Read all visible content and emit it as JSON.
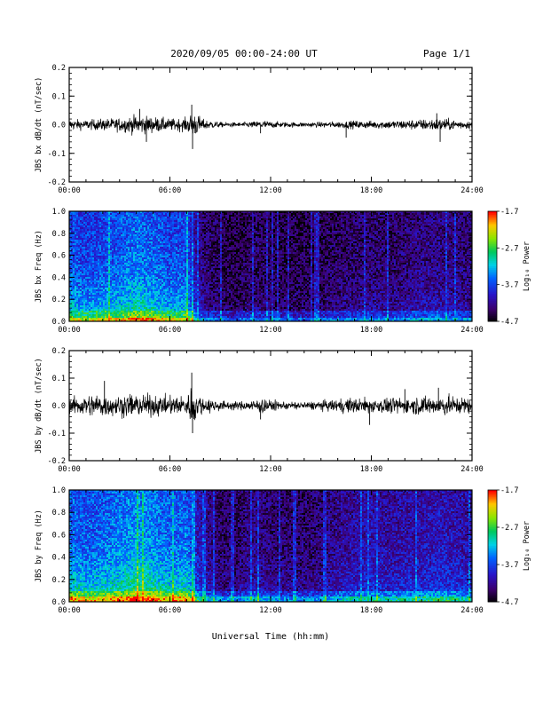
{
  "header": {
    "title": "2020/09/05  00:00-24:00 UT",
    "page": "Page 1/1"
  },
  "xlabel": "Universal Time (hh:mm)",
  "colors": {
    "trace": "#000000",
    "background": "#ffffff"
  },
  "chart_data": [
    {
      "type": "line",
      "name": "bx-dbdt",
      "ylabel": "JBS bx dB/dt (nT/sec)",
      "xlim": [
        0,
        24
      ],
      "ylim": [
        -0.2,
        0.2
      ],
      "x_ticks": [
        "00:00",
        "06:00",
        "12:00",
        "18:00",
        "24:00"
      ],
      "y_ticks": [
        "0.2",
        "0.1",
        "0.0",
        "-0.1",
        "-0.2"
      ],
      "envelope": {
        "hours": [
          0,
          1,
          2,
          3,
          4,
          5,
          6,
          7,
          7.4,
          8,
          9,
          10,
          11,
          11.5,
          12,
          13,
          14,
          15,
          16,
          17,
          18,
          19,
          20,
          21,
          22,
          23,
          24
        ],
        "amplitude": [
          0.02,
          0.018,
          0.022,
          0.025,
          0.035,
          0.03,
          0.022,
          0.025,
          0.05,
          0.02,
          0.01,
          0.008,
          0.012,
          0.018,
          0.012,
          0.01,
          0.009,
          0.01,
          0.012,
          0.015,
          0.014,
          0.016,
          0.018,
          0.02,
          0.025,
          0.018,
          0.015
        ]
      },
      "spikes": [
        [
          4.2,
          0.055
        ],
        [
          4.6,
          -0.06
        ],
        [
          7.3,
          0.07
        ],
        [
          7.35,
          -0.085
        ],
        [
          11.4,
          -0.03
        ],
        [
          16.5,
          -0.045
        ],
        [
          21.9,
          0.04
        ],
        [
          22.1,
          -0.06
        ]
      ]
    },
    {
      "type": "heatmap",
      "name": "bx-spectrogram",
      "ylabel": "JBS bx Freq (Hz)",
      "xlim": [
        0,
        24
      ],
      "ylim": [
        0,
        1
      ],
      "x_ticks": [
        "00:00",
        "06:00",
        "12:00",
        "18:00",
        "24:00"
      ],
      "y_ticks": [
        "1.0",
        "0.8",
        "0.6",
        "0.4",
        "0.2",
        "0.0"
      ],
      "colorbar": {
        "label": "Log₁₀ Power",
        "range": [
          -4.7,
          -1.7
        ],
        "ticks": [
          "-1.7",
          "-2.7",
          "-3.7",
          "-4.7"
        ]
      },
      "activity": {
        "hours": [
          0,
          1,
          2,
          3,
          4,
          5,
          6,
          7,
          7.5,
          8,
          9,
          10,
          11,
          12,
          13,
          14,
          15,
          16,
          17,
          18,
          19,
          20,
          21,
          22,
          23,
          24
        ],
        "level": [
          0.62,
          0.55,
          0.6,
          0.62,
          0.7,
          0.65,
          0.58,
          0.6,
          0.35,
          0.22,
          0.15,
          0.12,
          0.18,
          0.15,
          0.14,
          0.13,
          0.15,
          0.18,
          0.2,
          0.22,
          0.2,
          0.22,
          0.25,
          0.26,
          0.24,
          0.22
        ]
      },
      "bright_lines": [
        7.35
      ]
    },
    {
      "type": "line",
      "name": "by-dbdt",
      "ylabel": "JBS by dB/dt (nT/sec)",
      "xlim": [
        0,
        24
      ],
      "ylim": [
        -0.2,
        0.2
      ],
      "x_ticks": [
        "00:00",
        "06:00",
        "12:00",
        "18:00",
        "24:00"
      ],
      "y_ticks": [
        "0.2",
        "0.1",
        "0.0",
        "-0.1",
        "-0.2"
      ],
      "envelope": {
        "hours": [
          0,
          1,
          2,
          3,
          4,
          5,
          6,
          7,
          7.4,
          8,
          9,
          10,
          11,
          11.5,
          12,
          13,
          14,
          15,
          16,
          17,
          18,
          19,
          20,
          21,
          22,
          23,
          24
        ],
        "amplitude": [
          0.035,
          0.04,
          0.045,
          0.04,
          0.045,
          0.04,
          0.035,
          0.04,
          0.08,
          0.03,
          0.02,
          0.015,
          0.022,
          0.035,
          0.02,
          0.015,
          0.015,
          0.018,
          0.025,
          0.03,
          0.028,
          0.03,
          0.03,
          0.035,
          0.04,
          0.035,
          0.03
        ]
      },
      "spikes": [
        [
          2.1,
          0.09
        ],
        [
          7.3,
          0.12
        ],
        [
          7.35,
          -0.1
        ],
        [
          11.4,
          -0.05
        ],
        [
          17.9,
          -0.07
        ],
        [
          20.0,
          0.06
        ],
        [
          22.0,
          0.065
        ]
      ]
    },
    {
      "type": "heatmap",
      "name": "by-spectrogram",
      "ylabel": "JBS by Freq (Hz)",
      "xlim": [
        0,
        24
      ],
      "ylim": [
        0,
        1
      ],
      "x_ticks": [
        "00:00",
        "06:00",
        "12:00",
        "18:00",
        "24:00"
      ],
      "y_ticks": [
        "1.0",
        "0.8",
        "0.6",
        "0.4",
        "0.2",
        "0.0"
      ],
      "colorbar": {
        "label": "Log₁₀ Power",
        "range": [
          -4.7,
          -1.7
        ],
        "ticks": [
          "-1.7",
          "-2.7",
          "-3.7",
          "-4.7"
        ]
      },
      "activity": {
        "hours": [
          0,
          1,
          2,
          3,
          4,
          5,
          6,
          7,
          7.5,
          8,
          9,
          10,
          11,
          12,
          13,
          14,
          15,
          16,
          17,
          18,
          19,
          20,
          21,
          22,
          23,
          24
        ],
        "level": [
          0.68,
          0.62,
          0.66,
          0.7,
          0.78,
          0.72,
          0.65,
          0.68,
          0.45,
          0.3,
          0.2,
          0.18,
          0.28,
          0.22,
          0.2,
          0.2,
          0.22,
          0.28,
          0.32,
          0.35,
          0.32,
          0.34,
          0.36,
          0.38,
          0.36,
          0.33
        ]
      },
      "bright_lines": [
        7.35,
        11.3
      ]
    }
  ]
}
